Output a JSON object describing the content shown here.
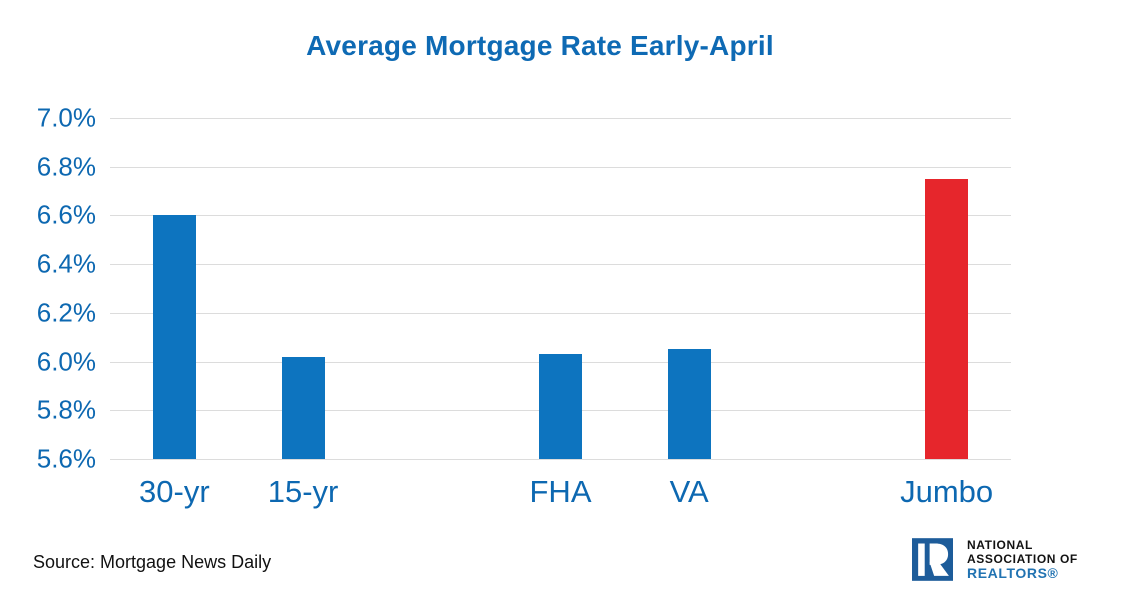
{
  "title": "Average Mortgage Rate Early-April",
  "chart_data": {
    "type": "bar",
    "title": "Average Mortgage Rate Early-April",
    "categories": [
      "30-yr",
      "15-yr",
      "FHA",
      "VA",
      "Jumbo"
    ],
    "values": [
      6.6,
      6.02,
      6.03,
      6.05,
      6.75
    ],
    "unit": "%",
    "bar_colors": [
      "#0d74bf",
      "#0d74bf",
      "#0d74bf",
      "#0d74bf",
      "#e6262c"
    ],
    "xlabel": "",
    "ylabel": "",
    "ylim": [
      5.6,
      7.0
    ],
    "ytick_step": 0.2,
    "ytick_labels": [
      "7.0%",
      "6.8%",
      "6.6%",
      "6.4%",
      "6.2%",
      "6.0%",
      "5.8%",
      "5.6%"
    ],
    "grid": "horizontal",
    "legend": "none",
    "layout": {
      "total_slots": 7,
      "slot_index": [
        0,
        1,
        3,
        4,
        6
      ]
    }
  },
  "source": {
    "label": "Source: Mortgage News Daily"
  },
  "logo": {
    "line1": "NATIONAL",
    "line2": "ASSOCIATION OF",
    "line3": "REALTORS®"
  },
  "colors": {
    "background": "#ffffff",
    "title_blue": "#0e6ab4",
    "axis_label_blue": "#0d68b1",
    "bar_blue": "#0d74bf",
    "bar_red": "#e6262c",
    "gridline": "#dcdcdc",
    "source_text": "#111111",
    "logo_navy": "#1d5c9a",
    "logo_text_dark": "#121212",
    "logo_text_blue": "#2173b2"
  }
}
